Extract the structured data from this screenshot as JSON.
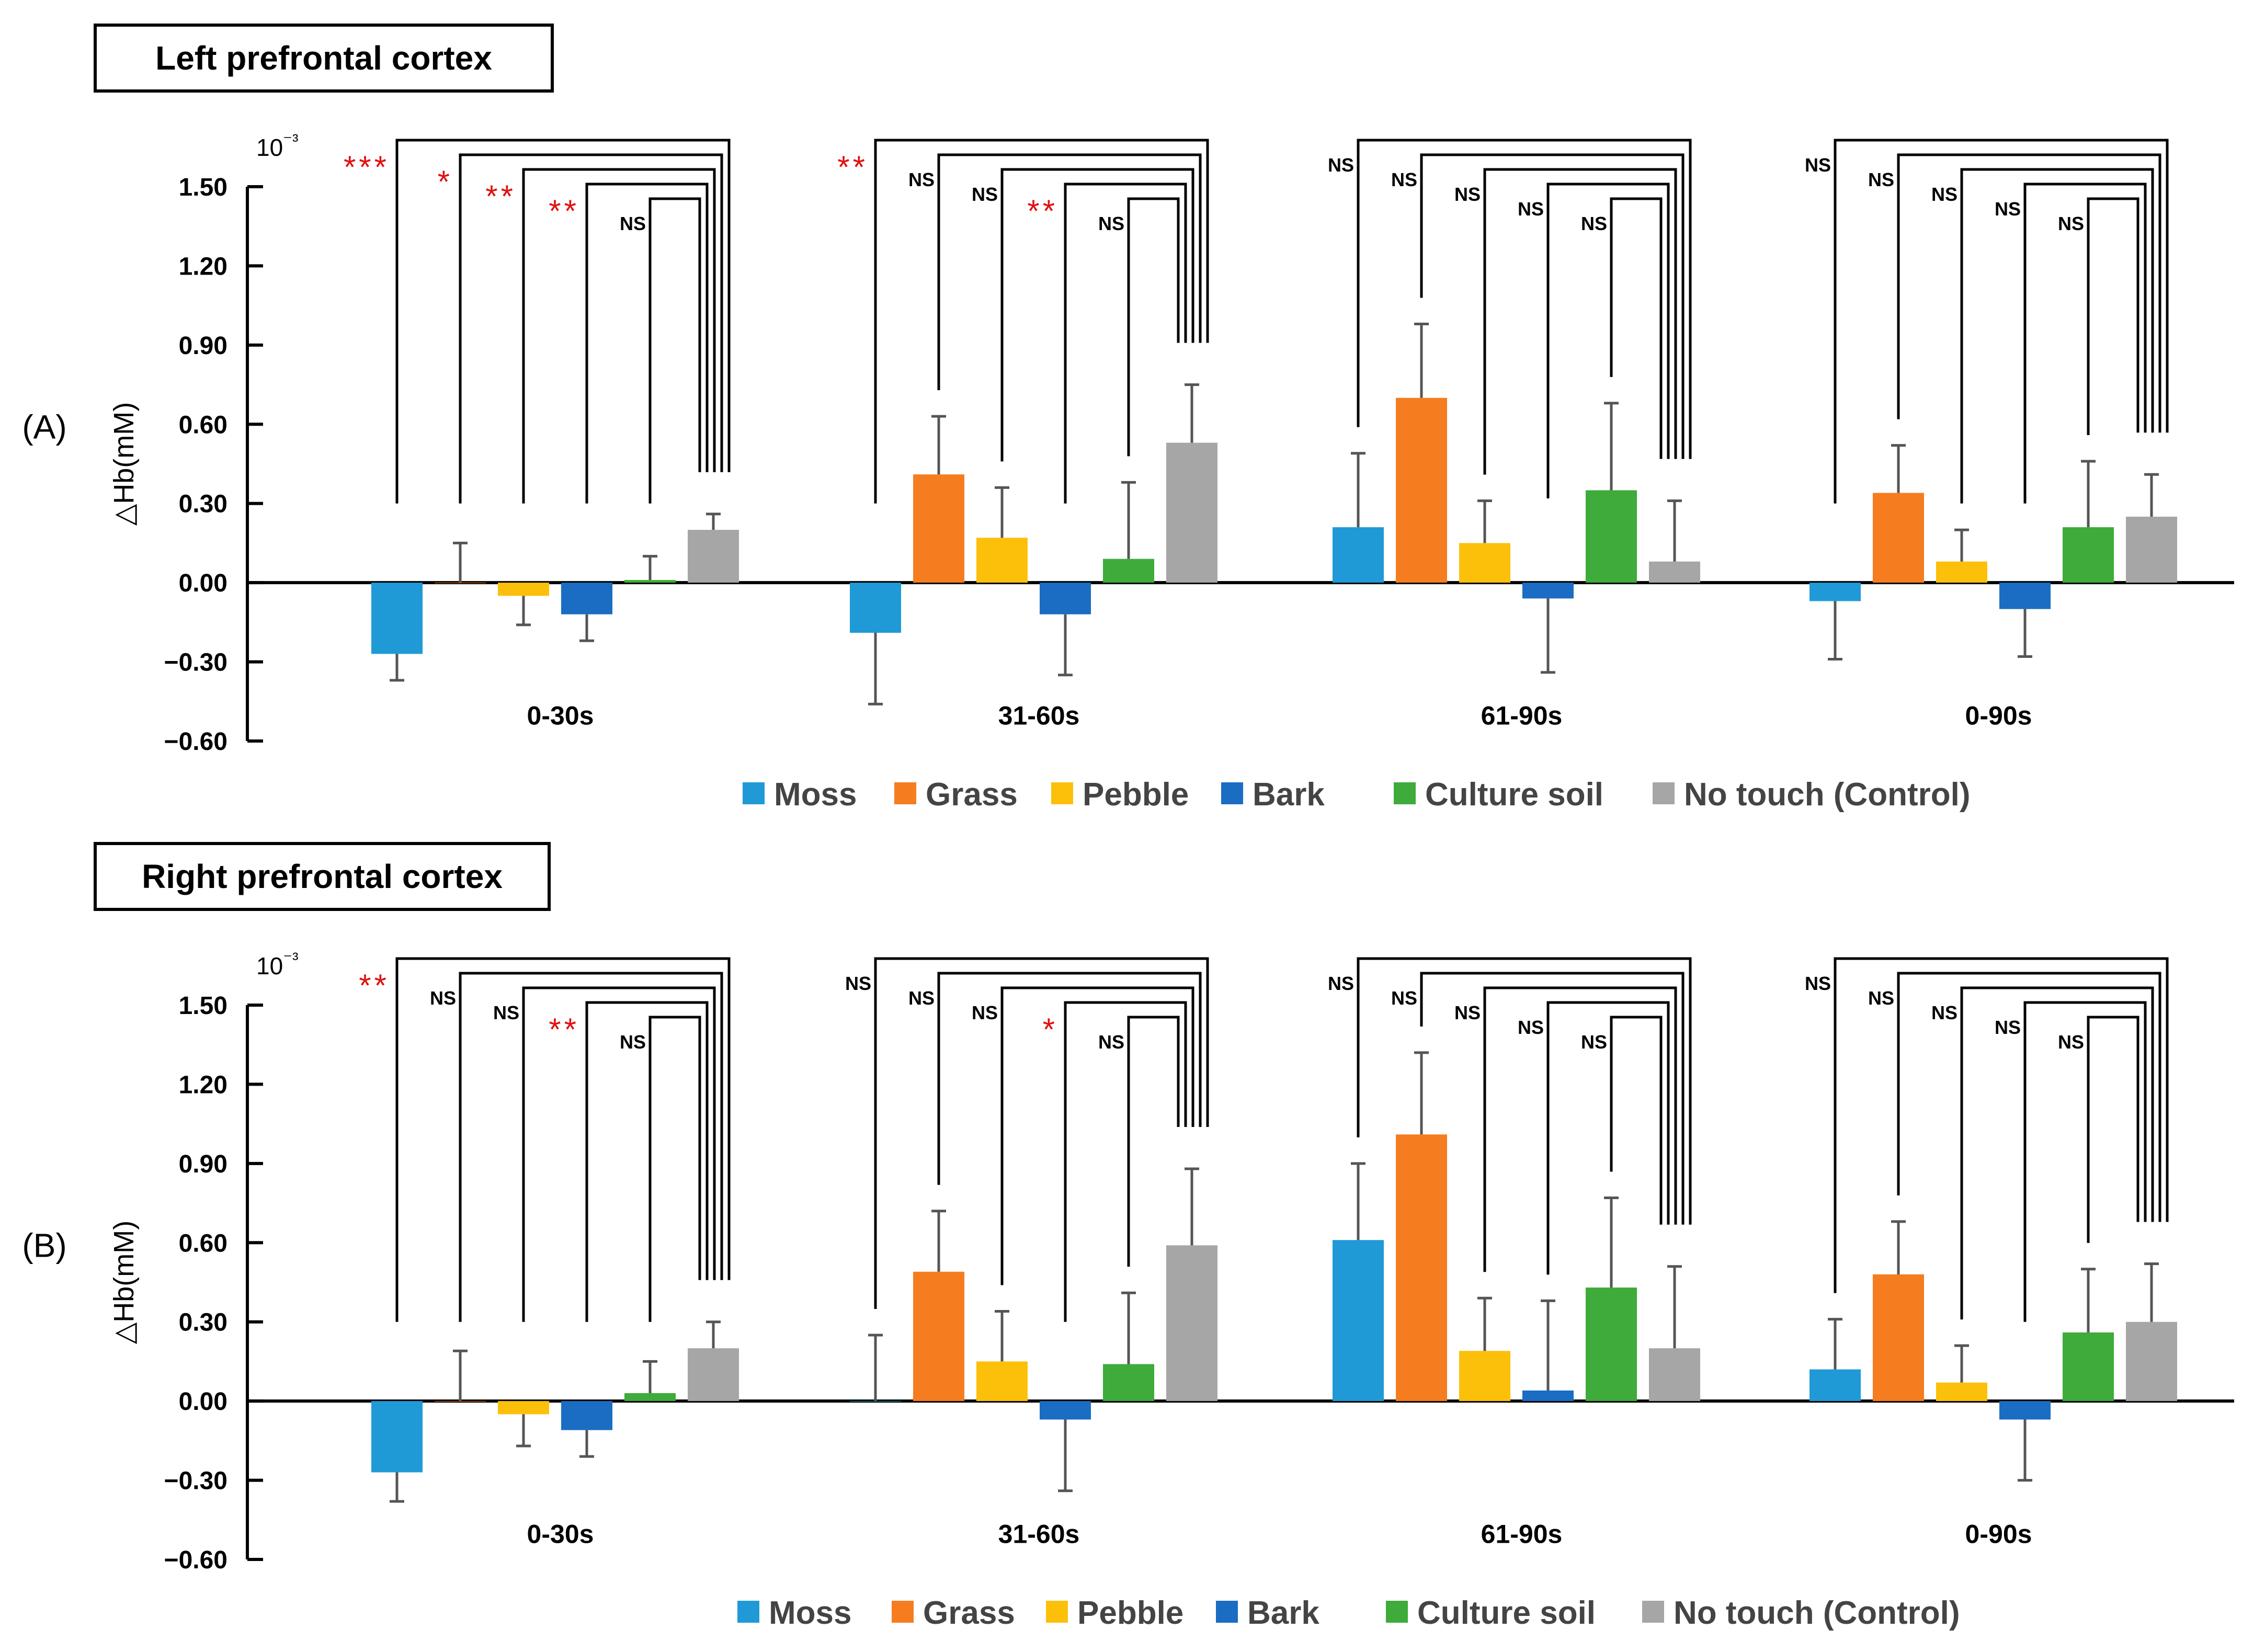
{
  "colors": {
    "Moss": "#1F9AD6",
    "Grass": "#F57D20",
    "Pebble": "#FCC00B",
    "Bark": "#1A6DC2",
    "Culture soil": "#3EAB3A",
    "No touch (Control)": "#A6A6A6",
    "significance": "#E01010",
    "axis": "#000000",
    "errorbar": "#555555"
  },
  "chart_data": [
    {
      "type": "bar",
      "panel_label": "(A)",
      "title": "Left prefrontal cortex",
      "ylabel": "△Hb(mM)",
      "scale_label": "10⁻³",
      "ylim": [
        -0.6,
        1.5
      ],
      "yticks": [
        "1.50",
        "1.20",
        "0.90",
        "0.60",
        "0.30",
        "0.00",
        "−0.30",
        "−0.60"
      ],
      "categories": [
        "0-30s",
        "31-60s",
        "61-90s",
        "0-90s"
      ],
      "series": [
        {
          "name": "Moss",
          "values": [
            -0.27,
            -0.19,
            0.21,
            -0.07
          ],
          "errors": [
            0.1,
            0.27,
            0.28,
            0.22
          ]
        },
        {
          "name": "Grass",
          "values": [
            0.0,
            0.41,
            0.7,
            0.34
          ],
          "errors": [
            0.15,
            0.22,
            0.28,
            0.18
          ]
        },
        {
          "name": "Pebble",
          "values": [
            -0.05,
            0.17,
            0.15,
            0.08
          ],
          "errors": [
            0.11,
            0.19,
            0.16,
            0.12
          ]
        },
        {
          "name": "Bark",
          "values": [
            -0.12,
            -0.12,
            -0.06,
            -0.1
          ],
          "errors": [
            0.1,
            0.23,
            0.28,
            0.18
          ]
        },
        {
          "name": "Culture soil",
          "values": [
            0.01,
            0.09,
            0.35,
            0.21
          ],
          "errors": [
            0.09,
            0.29,
            0.33,
            0.25
          ]
        },
        {
          "name": "No touch (Control)",
          "values": [
            0.2,
            0.53,
            0.08,
            0.25
          ],
          "errors": [
            0.06,
            0.22,
            0.23,
            0.16
          ]
        }
      ],
      "significance": [
        [
          "***",
          "*",
          "**",
          "**",
          "NS"
        ],
        [
          "**",
          "NS",
          "NS",
          "**",
          "NS"
        ],
        [
          "NS",
          "NS",
          "NS",
          "NS",
          "NS"
        ],
        [
          "NS",
          "NS",
          "NS",
          "NS",
          "NS"
        ]
      ],
      "legend": [
        "Moss",
        "Grass",
        "Pebble",
        "Bark",
        "Culture soil",
        "No touch (Control)"
      ]
    },
    {
      "type": "bar",
      "panel_label": "(B)",
      "title": "Right prefrontal cortex",
      "ylabel": "△Hb(mM)",
      "scale_label": "10⁻³",
      "ylim": [
        -0.6,
        1.5
      ],
      "yticks": [
        "1.50",
        "1.20",
        "0.90",
        "0.60",
        "0.30",
        "0.00",
        "−0.30",
        "−0.60"
      ],
      "categories": [
        "0-30s",
        "31-60s",
        "61-90s",
        "0-90s"
      ],
      "series": [
        {
          "name": "Moss",
          "values": [
            -0.27,
            0.0,
            0.61,
            0.12
          ],
          "errors": [
            0.11,
            0.25,
            0.29,
            0.19
          ]
        },
        {
          "name": "Grass",
          "values": [
            0.0,
            0.49,
            1.01,
            0.48
          ],
          "errors": [
            0.19,
            0.23,
            0.31,
            0.2
          ]
        },
        {
          "name": "Pebble",
          "values": [
            -0.05,
            0.15,
            0.19,
            0.07
          ],
          "errors": [
            0.12,
            0.19,
            0.2,
            0.14
          ]
        },
        {
          "name": "Bark",
          "values": [
            -0.11,
            -0.07,
            0.04,
            -0.07
          ],
          "errors": [
            0.1,
            0.27,
            0.34,
            0.23
          ]
        },
        {
          "name": "Culture soil",
          "values": [
            0.03,
            0.14,
            0.43,
            0.26
          ],
          "errors": [
            0.12,
            0.27,
            0.34,
            0.24
          ]
        },
        {
          "name": "No touch (Control)",
          "values": [
            0.2,
            0.59,
            0.2,
            0.3
          ],
          "errors": [
            0.1,
            0.29,
            0.31,
            0.22
          ]
        }
      ],
      "significance": [
        [
          "**",
          "NS",
          "NS",
          "**",
          "NS"
        ],
        [
          "NS",
          "NS",
          "NS",
          "*",
          "NS"
        ],
        [
          "NS",
          "NS",
          "NS",
          "NS",
          "NS"
        ],
        [
          "NS",
          "NS",
          "NS",
          "NS",
          "NS"
        ]
      ],
      "legend": [
        "Moss",
        "Grass",
        "Pebble",
        "Bark",
        "Culture soil",
        "No touch (Control)"
      ]
    }
  ]
}
